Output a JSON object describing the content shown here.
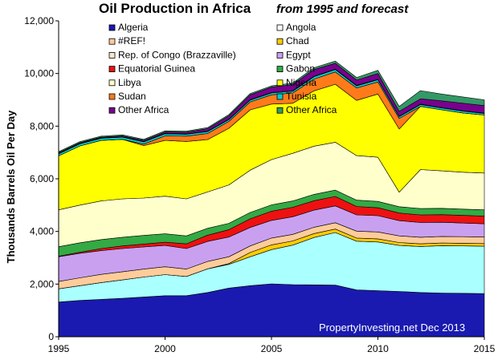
{
  "chart_data": {
    "type": "area",
    "stacked": true,
    "title": "Oil Production in Africa",
    "subtitle": "from 1995 and forecast",
    "ylabel": "Thousands Barrels Oil Per Day",
    "xlabel": "",
    "watermark": "PropertyInvesting.net  Dec 2013",
    "x": [
      1995,
      1996,
      1997,
      1998,
      1999,
      2000,
      2001,
      2002,
      2003,
      2004,
      2005,
      2006,
      2007,
      2008,
      2009,
      2010,
      2011,
      2012,
      2013,
      2014,
      2015
    ],
    "xlim": [
      1995,
      2015
    ],
    "ylim": [
      0,
      12000
    ],
    "x_ticks": [
      "1995",
      "2000",
      "2005",
      "2010",
      "2015"
    ],
    "y_ticks": [
      "0",
      "2,000",
      "4,000",
      "6,000",
      "8,000",
      "10,000",
      "12,000"
    ],
    "grid": false,
    "legend": "upper-left inside, two columns",
    "legend_entries": [
      {
        "name": "Algeria",
        "color": "#1a1ab0"
      },
      {
        "name": "Angola",
        "color": "#ffffff"
      },
      {
        "name": "#REF!",
        "color": "#ffcc99"
      },
      {
        "name": "Chad",
        "color": "#ffcc00"
      },
      {
        "name": "Rep. of Congo (Brazzaville)",
        "color": "#ffe4cc"
      },
      {
        "name": "Egypt",
        "color": "#c9a0f0"
      },
      {
        "name": "Equatorial Guinea",
        "color": "#ee1111"
      },
      {
        "name": "Gabon",
        "color": "#33aa44"
      },
      {
        "name": "Libya",
        "color": "#ffffcc"
      },
      {
        "name": "Nigeria",
        "color": "#ffff00"
      },
      {
        "name": "Sudan",
        "color": "#ff7a1a"
      },
      {
        "name": "Tunisia",
        "color": "#00cccc"
      },
      {
        "name": "Other Africa",
        "color": "#7a0090"
      },
      {
        "name": "Other Africa",
        "color": "#339966"
      }
    ],
    "series": [
      {
        "color": "#1a1ab0",
        "values": [
          1320,
          1380,
          1420,
          1460,
          1510,
          1560,
          1560,
          1680,
          1850,
          1940,
          2010,
          1980,
          1970,
          1960,
          1780,
          1750,
          1720,
          1680,
          1660,
          1650,
          1640
        ]
      },
      {
        "color": "#aaffff",
        "values": [
          500,
          560,
          640,
          700,
          760,
          800,
          730,
          900,
          900,
          1100,
          1300,
          1500,
          1800,
          2000,
          1850,
          1850,
          1750,
          1750,
          1800,
          1800,
          1800
        ]
      },
      {
        "color": "#ffcc00",
        "values": [
          0,
          0,
          0,
          0,
          0,
          0,
          0,
          0,
          30,
          160,
          180,
          160,
          150,
          130,
          120,
          120,
          110,
          100,
          100,
          100,
          100
        ]
      },
      {
        "color": "#ffcc99",
        "values": [
          280,
          300,
          310,
          310,
          300,
          300,
          280,
          280,
          260,
          250,
          260,
          250,
          240,
          240,
          260,
          260,
          250,
          250,
          250,
          250,
          250
        ]
      },
      {
        "color": "#c9a0f0",
        "values": [
          940,
          930,
          900,
          880,
          840,
          810,
          780,
          760,
          750,
          700,
          670,
          670,
          650,
          640,
          620,
          620,
          580,
          560,
          540,
          520,
          500
        ]
      },
      {
        "color": "#ee1111",
        "values": [
          20,
          40,
          80,
          100,
          110,
          120,
          180,
          240,
          280,
          330,
          350,
          360,
          360,
          360,
          320,
          300,
          290,
          290,
          290,
          290,
          290
        ]
      },
      {
        "color": "#33aa44",
        "values": [
          360,
          360,
          340,
          330,
          330,
          320,
          300,
          260,
          240,
          240,
          240,
          240,
          240,
          240,
          240,
          240,
          240,
          240,
          240,
          240,
          240
        ]
      },
      {
        "color": "#ffffcc",
        "values": [
          1400,
          1430,
          1470,
          1460,
          1420,
          1430,
          1410,
          1380,
          1460,
          1610,
          1720,
          1810,
          1830,
          1820,
          1690,
          1680,
          550,
          1480,
          1420,
          1400,
          1400
        ]
      },
      {
        "color": "#ffff00",
        "values": [
          2050,
          2250,
          2300,
          2260,
          1990,
          2120,
          2180,
          1990,
          2150,
          2290,
          2110,
          1900,
          2100,
          2200,
          2100,
          2400,
          2400,
          2400,
          2320,
          2250,
          2200
        ]
      },
      {
        "color": "#ff7a1a",
        "values": [
          0,
          0,
          0,
          0,
          60,
          170,
          200,
          230,
          260,
          300,
          350,
          390,
          450,
          470,
          470,
          460,
          400,
          0,
          0,
          0,
          0
        ]
      },
      {
        "color": "#00cccc",
        "values": [
          80,
          80,
          80,
          80,
          80,
          80,
          70,
          75,
          70,
          70,
          70,
          70,
          90,
          90,
          80,
          80,
          70,
          70,
          70,
          70,
          60
        ]
      },
      {
        "color": "#ffffff",
        "values": [
          20,
          20,
          20,
          20,
          20,
          20,
          20,
          20,
          20,
          20,
          20,
          20,
          20,
          20,
          20,
          20,
          20,
          20,
          20,
          20,
          20
        ]
      },
      {
        "color": "#7a0090",
        "values": [
          20,
          20,
          20,
          30,
          40,
          50,
          60,
          90,
          120,
          180,
          200,
          230,
          250,
          220,
          200,
          220,
          180,
          200,
          250,
          280,
          280
        ]
      },
      {
        "color": "#339966",
        "values": [
          40,
          40,
          40,
          40,
          40,
          40,
          40,
          40,
          50,
          50,
          50,
          60,
          70,
          80,
          100,
          120,
          190,
          310,
          260,
          240,
          220
        ]
      }
    ]
  }
}
